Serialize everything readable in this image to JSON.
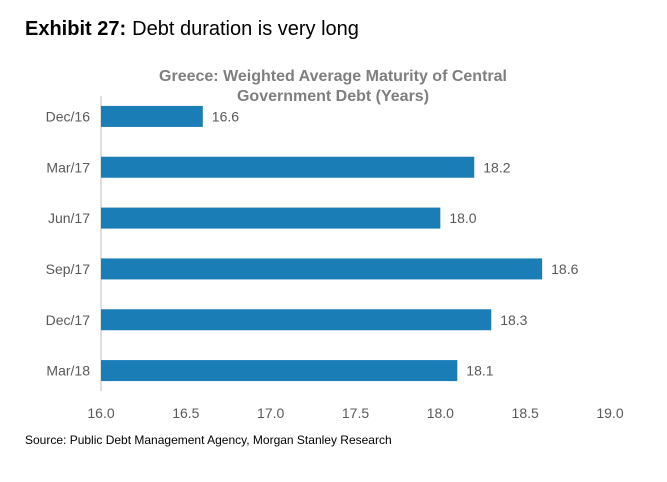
{
  "exhibit": {
    "label": "Exhibit 27:",
    "title": "Debt duration is very long"
  },
  "chart_data": {
    "type": "bar",
    "orientation": "horizontal",
    "title_lines": [
      "Greece: Weighted Average Maturity of Central",
      "Government Debt (Years)"
    ],
    "categories": [
      "Dec/16",
      "Mar/17",
      "Jun/17",
      "Sep/17",
      "Dec/17",
      "Mar/18"
    ],
    "values": [
      16.6,
      18.2,
      18.0,
      18.6,
      18.3,
      18.1
    ],
    "value_labels": [
      "16.6",
      "18.2",
      "18.0",
      "18.6",
      "18.3",
      "18.1"
    ],
    "xlim": [
      16.0,
      19.0
    ],
    "xticks": [
      16.0,
      16.5,
      17.0,
      17.5,
      18.0,
      18.5,
      19.0
    ],
    "xtick_labels": [
      "16.0",
      "16.5",
      "17.0",
      "17.5",
      "18.0",
      "18.5",
      "19.0"
    ],
    "grid": false,
    "legend": "none",
    "bar_color": "#1a7db6",
    "title_color": "#7f7f7f",
    "label_color": "#595959"
  },
  "source": "Source: Public Debt Management Agency, Morgan Stanley Research"
}
